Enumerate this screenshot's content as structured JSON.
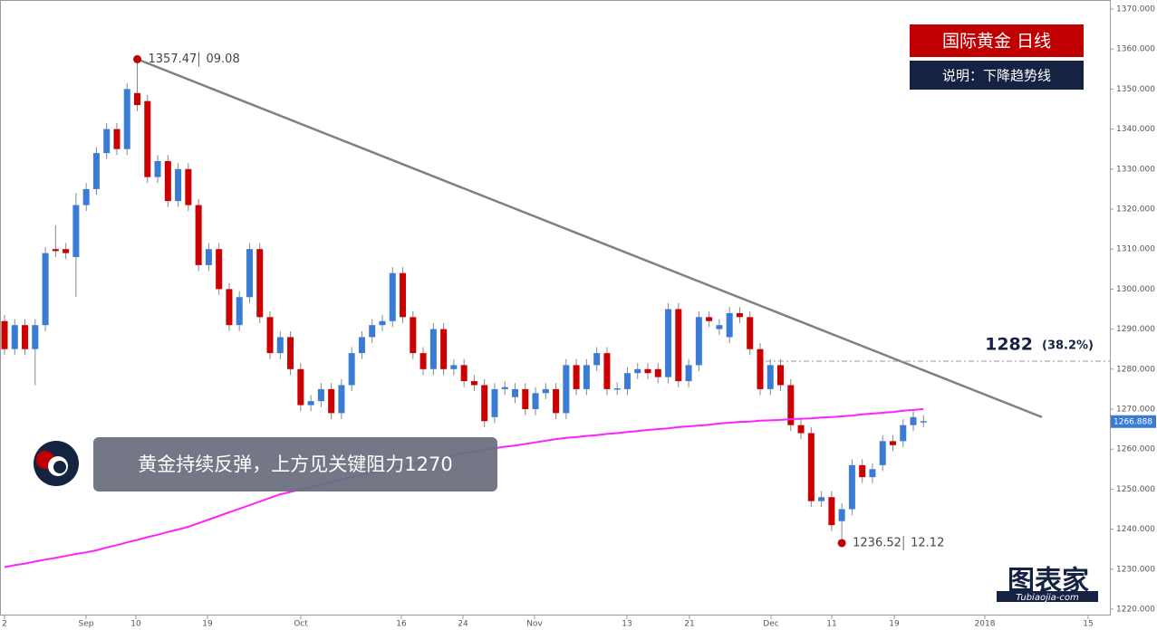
{
  "chart_data": {
    "type": "candlestick",
    "title": "国际黄金  日线",
    "subtitle": "说明：下降趋势线",
    "callout": "黄金持续反弹，上方见关键阻力1270",
    "logo": "图表家",
    "logo_url": "Tubiaojia-com",
    "up_color": "#3a7bd5",
    "down_color": "#cc0000",
    "ma_color": "#ff22ff",
    "trend_color": "#808080",
    "ylim": [
      1220,
      1370
    ],
    "yticks": [
      {
        "value": 1220,
        "label": "1220.000"
      },
      {
        "value": 1230,
        "label": "1230.000"
      },
      {
        "value": 1240,
        "label": "1240.000"
      },
      {
        "value": 1250,
        "label": "1250.000"
      },
      {
        "value": 1260,
        "label": "1260.000"
      },
      {
        "value": 1270,
        "label": "1270.000"
      },
      {
        "value": 1280,
        "label": "1280.000"
      },
      {
        "value": 1290,
        "label": "1290.000"
      },
      {
        "value": 1300,
        "label": "1300.000"
      },
      {
        "value": 1310,
        "label": "1310.000"
      },
      {
        "value": 1320,
        "label": "1320.000"
      },
      {
        "value": 1330,
        "label": "1330.000"
      },
      {
        "value": 1340,
        "label": "1340.000"
      },
      {
        "value": 1350,
        "label": "1350.000"
      },
      {
        "value": 1360,
        "label": "1360.000"
      },
      {
        "value": 1370,
        "label": "1370.000"
      }
    ],
    "x_labels": [
      "2",
      "Sep",
      "10",
      "19",
      "Oct",
      "16",
      "24",
      "Nov",
      "13",
      "21",
      "Dec",
      "11",
      "19",
      "2018",
      "15"
    ],
    "open": [
      1292,
      1285,
      1291,
      1285,
      1291,
      1310,
      1310,
      1308,
      1321,
      1325,
      1334,
      1340,
      1335,
      1349,
      1347,
      1328,
      1332,
      1322,
      1330,
      1321,
      1306,
      1310,
      1300,
      1291,
      1298,
      1310,
      1293,
      1284,
      1288,
      1280,
      1271,
      1272,
      1275,
      1269,
      1276,
      1284,
      1288,
      1291,
      1292,
      1304,
      1293,
      1284,
      1280,
      1290,
      1280,
      1281,
      1277,
      1276,
      1268,
      1275,
      1273,
      1275,
      1270,
      1274,
      1275,
      1269,
      1281,
      1275,
      1281,
      1284,
      1275,
      1275,
      1279,
      1280,
      1280,
      1278,
      1295,
      1277,
      1281,
      1293,
      1290,
      1288,
      1294,
      1293,
      1285,
      1275,
      1281,
      1276,
      1266,
      1264,
      1247,
      1248,
      1242,
      1245,
      1256,
      1253,
      1256,
      1262,
      1262,
      1266,
      1267
    ],
    "close": [
      1285,
      1291,
      1285,
      1291,
      1309,
      1309.5,
      1309,
      1321,
      1325,
      1334,
      1340,
      1335,
      1350,
      1346,
      1328,
      1332,
      1322,
      1330,
      1321,
      1306,
      1310,
      1300,
      1291,
      1298,
      1310,
      1293,
      1284,
      1288,
      1280,
      1271,
      1272,
      1275,
      1269,
      1276,
      1284,
      1288,
      1291,
      1292,
      1304,
      1293,
      1284,
      1280,
      1290,
      1280,
      1281,
      1277,
      1276,
      1267,
      1275,
      1275.5,
      1275,
      1270,
      1274,
      1275,
      1269,
      1281,
      1275,
      1281,
      1284,
      1275,
      1275.2,
      1279,
      1280,
      1279,
      1278,
      1295,
      1277,
      1281,
      1293,
      1292,
      1291,
      1294,
      1293,
      1285,
      1275,
      1281,
      1276,
      1266,
      1264,
      1247,
      1248,
      1241,
      1245,
      1256,
      1253,
      1255,
      1262,
      1261,
      1266,
      1268,
      1267
    ],
    "high": [
      1293.5,
      1292.5,
      1292.5,
      1292.5,
      1310.5,
      1316,
      1311.5,
      1324,
      1326.5,
      1335.5,
      1341.5,
      1341.5,
      1351.5,
      1357.47,
      1348.5,
      1333.5,
      1333.5,
      1331.5,
      1331.5,
      1322.5,
      1311.5,
      1311.5,
      1301.5,
      1299.5,
      1311.5,
      1311.5,
      1294.5,
      1289.5,
      1289.5,
      1281.5,
      1273.5,
      1276.5,
      1276.5,
      1277.5,
      1285.5,
      1289.5,
      1292.5,
      1293.5,
      1305.5,
      1305.5,
      1294.5,
      1285.5,
      1291.5,
      1291.5,
      1282.5,
      1282.5,
      1278.5,
      1277.5,
      1276.5,
      1277,
      1276.5,
      1276.5,
      1275.5,
      1276.5,
      1276.5,
      1282.5,
      1282.5,
      1282.5,
      1285.5,
      1285.5,
      1276.7,
      1280.5,
      1281.5,
      1281.5,
      1281.5,
      1296.5,
      1296.5,
      1282.5,
      1294.5,
      1294.5,
      1292.5,
      1295.5,
      1295.5,
      1294.5,
      1286.5,
      1282.5,
      1282.5,
      1277.5,
      1267.5,
      1265.5,
      1249.5,
      1249.5,
      1246.5,
      1257.5,
      1257.5,
      1256.5,
      1263.5,
      1263.5,
      1267.5,
      1269.5,
      1268.5
    ],
    "low": [
      1283.5,
      1283.5,
      1283.5,
      1276,
      1289.5,
      1308,
      1307.5,
      1298,
      1319.5,
      1323.5,
      1332.5,
      1333.5,
      1333.5,
      1344.5,
      1326.5,
      1326.5,
      1320.5,
      1320.5,
      1319.5,
      1304.5,
      1304.5,
      1298.5,
      1289.5,
      1289.5,
      1296.5,
      1291.5,
      1282.5,
      1282.5,
      1278.5,
      1269.5,
      1269.5,
      1270.5,
      1267.5,
      1267.5,
      1274.5,
      1282.5,
      1286.5,
      1289.5,
      1290.5,
      1291.5,
      1282.5,
      1278.5,
      1278.5,
      1278.5,
      1278.5,
      1275.5,
      1274.5,
      1265.5,
      1266.5,
      1273.5,
      1271.5,
      1268.5,
      1268.5,
      1272.5,
      1267.5,
      1267.5,
      1273.5,
      1273.5,
      1279.5,
      1273.5,
      1273.5,
      1273.5,
      1277.5,
      1277.5,
      1276.5,
      1276.5,
      1275.5,
      1275.5,
      1279.5,
      1290.5,
      1288.5,
      1286.5,
      1291.5,
      1283.5,
      1273.5,
      1273.5,
      1274.5,
      1264.5,
      1262.5,
      1245.5,
      1245.5,
      1239.5,
      1236.52,
      1243.5,
      1251.5,
      1251.5,
      1254.5,
      1259.5,
      1260.5,
      1264.5,
      1265.5
    ],
    "ma": [
      1230.5,
      1231.0,
      1231.4,
      1231.9,
      1232.4,
      1232.8,
      1233.3,
      1233.8,
      1234.2,
      1234.7,
      1235.4,
      1236.0,
      1236.7,
      1237.3,
      1238.0,
      1238.6,
      1239.3,
      1239.9,
      1240.6,
      1241.5,
      1242.4,
      1243.3,
      1244.2,
      1245.1,
      1246.0,
      1246.9,
      1247.8,
      1248.7,
      1249.3,
      1249.9,
      1250.5,
      1251.1,
      1251.8,
      1252.4,
      1253.0,
      1253.6,
      1254.2,
      1254.7,
      1255.3,
      1255.8,
      1256.3,
      1256.9,
      1257.4,
      1257.9,
      1258.5,
      1259.0,
      1259.4,
      1259.8,
      1260.2,
      1260.6,
      1260.9,
      1261.3,
      1261.7,
      1262.1,
      1262.5,
      1262.8,
      1263.0,
      1263.3,
      1263.5,
      1263.8,
      1264.0,
      1264.3,
      1264.5,
      1264.8,
      1265.0,
      1265.2,
      1265.5,
      1265.7,
      1265.9,
      1266.1,
      1266.4,
      1266.6,
      1266.8,
      1266.9,
      1267.1,
      1267.2,
      1267.3,
      1267.5,
      1267.6,
      1267.7,
      1267.9,
      1268.0,
      1268.2,
      1268.4,
      1268.7,
      1268.9,
      1269.1,
      1269.3,
      1269.6,
      1269.8,
      1270.0
    ],
    "trendline": [
      1357.47,
      1268
    ],
    "level": {
      "value": 1282,
      "label": "1282",
      "note": "(38.2%)"
    },
    "last_price": {
      "value": 1266.888,
      "label": "1266.888"
    },
    "high_note": {
      "price": "1357.47",
      "date": "09.08"
    },
    "low_note": {
      "price": "1236.52",
      "date": "12.12"
    }
  }
}
